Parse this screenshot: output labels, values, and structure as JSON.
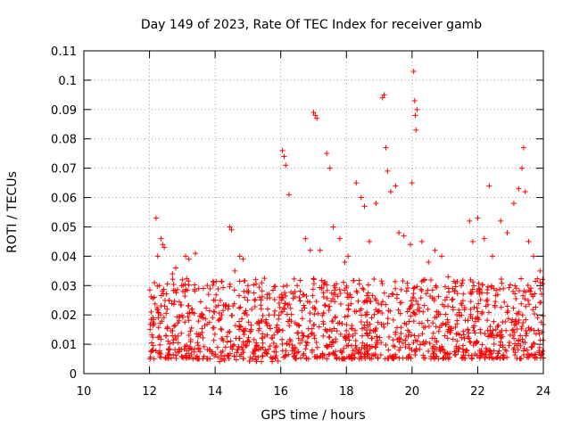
{
  "chart_data": {
    "type": "scatter",
    "title": "Day 149 of 2023, Rate Of TEC Index for receiver gamb",
    "xlabel": "GPS time / hours",
    "ylabel": "ROTI / TECUs",
    "xlim": [
      10,
      24
    ],
    "ylim": [
      0,
      0.11
    ],
    "x_ticks": [
      "10",
      "12",
      "14",
      "16",
      "18",
      "20",
      "22",
      "24"
    ],
    "y_ticks": [
      "0",
      "0.01",
      "0.02",
      "0.03",
      "0.04",
      "0.05",
      "0.06",
      "0.07",
      "0.08",
      "0.09",
      "0.1",
      "0.11"
    ],
    "grid": true,
    "marker": "+",
    "marker_color": "#ff0000",
    "series": [
      {
        "name": "",
        "data_range_x": [
          12.0,
          24.0
        ],
        "typical_band_y": [
          0.005,
          0.03
        ],
        "points": [
          [
            12.05,
            0.021
          ],
          [
            12.1,
            0.008
          ],
          [
            12.15,
            0.031
          ],
          [
            12.2,
            0.053
          ],
          [
            12.25,
            0.04
          ],
          [
            12.3,
            0.03
          ],
          [
            12.35,
            0.046
          ],
          [
            12.4,
            0.044
          ],
          [
            12.45,
            0.043
          ],
          [
            12.5,
            0.013
          ],
          [
            12.6,
            0.025
          ],
          [
            12.7,
            0.034
          ],
          [
            12.8,
            0.036
          ],
          [
            12.9,
            0.018
          ],
          [
            13.0,
            0.032
          ],
          [
            13.1,
            0.04
          ],
          [
            13.2,
            0.039
          ],
          [
            13.3,
            0.022
          ],
          [
            13.4,
            0.041
          ],
          [
            13.5,
            0.029
          ],
          [
            13.6,
            0.014
          ],
          [
            13.8,
            0.027
          ],
          [
            14.0,
            0.025
          ],
          [
            14.2,
            0.02
          ],
          [
            14.45,
            0.05
          ],
          [
            14.5,
            0.049
          ],
          [
            14.6,
            0.035
          ],
          [
            14.75,
            0.04
          ],
          [
            14.85,
            0.039
          ],
          [
            15.0,
            0.03
          ],
          [
            15.2,
            0.025
          ],
          [
            15.4,
            0.018
          ],
          [
            15.6,
            0.022
          ],
          [
            15.8,
            0.02
          ],
          [
            16.05,
            0.076
          ],
          [
            16.1,
            0.074
          ],
          [
            16.15,
            0.071
          ],
          [
            16.25,
            0.061
          ],
          [
            16.5,
            0.03
          ],
          [
            16.75,
            0.046
          ],
          [
            16.9,
            0.042
          ],
          [
            17.0,
            0.089
          ],
          [
            17.05,
            0.088
          ],
          [
            17.1,
            0.087
          ],
          [
            17.2,
            0.042
          ],
          [
            17.4,
            0.075
          ],
          [
            17.5,
            0.07
          ],
          [
            17.6,
            0.05
          ],
          [
            17.8,
            0.046
          ],
          [
            17.95,
            0.038
          ],
          [
            18.05,
            0.04
          ],
          [
            18.3,
            0.065
          ],
          [
            18.45,
            0.06
          ],
          [
            18.55,
            0.057
          ],
          [
            18.7,
            0.045
          ],
          [
            18.9,
            0.058
          ],
          [
            19.1,
            0.094
          ],
          [
            19.15,
            0.095
          ],
          [
            19.2,
            0.077
          ],
          [
            19.25,
            0.069
          ],
          [
            19.35,
            0.062
          ],
          [
            19.5,
            0.064
          ],
          [
            19.6,
            0.048
          ],
          [
            19.75,
            0.047
          ],
          [
            19.95,
            0.044
          ],
          [
            20.05,
            0.103
          ],
          [
            20.08,
            0.093
          ],
          [
            20.1,
            0.088
          ],
          [
            20.12,
            0.083
          ],
          [
            20.15,
            0.09
          ],
          [
            20.0,
            0.065
          ],
          [
            20.3,
            0.045
          ],
          [
            20.5,
            0.038
          ],
          [
            20.7,
            0.042
          ],
          [
            20.9,
            0.04
          ],
          [
            21.1,
            0.033
          ],
          [
            21.3,
            0.028
          ],
          [
            21.5,
            0.03
          ],
          [
            21.75,
            0.052
          ],
          [
            21.85,
            0.045
          ],
          [
            22.0,
            0.053
          ],
          [
            22.2,
            0.046
          ],
          [
            22.35,
            0.064
          ],
          [
            22.45,
            0.04
          ],
          [
            22.7,
            0.052
          ],
          [
            22.9,
            0.048
          ],
          [
            23.1,
            0.058
          ],
          [
            23.25,
            0.063
          ],
          [
            23.35,
            0.07
          ],
          [
            23.4,
            0.077
          ],
          [
            23.45,
            0.062
          ],
          [
            23.55,
            0.045
          ],
          [
            23.7,
            0.04
          ],
          [
            23.9,
            0.035
          ]
        ]
      }
    ]
  }
}
